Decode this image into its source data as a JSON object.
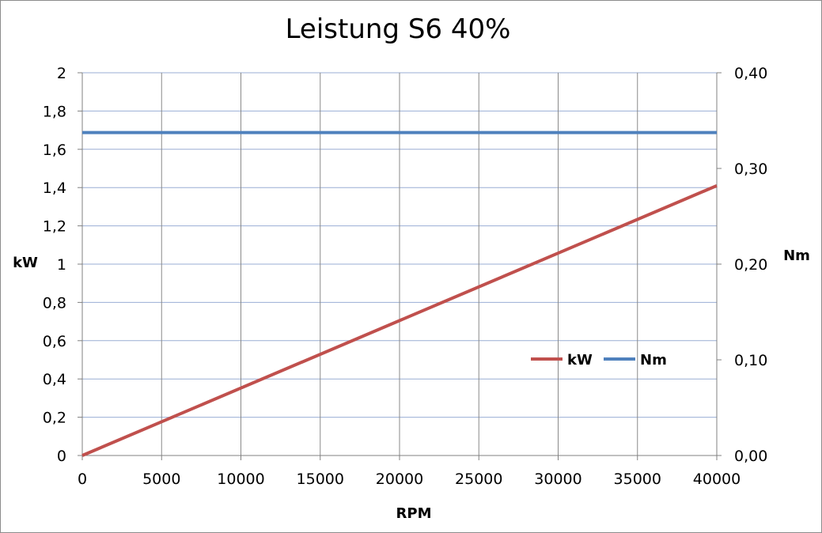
{
  "chart_data": {
    "type": "line",
    "title": "Leistung S6 40%",
    "xlabel": "RPM",
    "ylabel_left": "kW",
    "ylabel_right": "Nm",
    "xlim": [
      0,
      40000
    ],
    "ylim_left": [
      0,
      2
    ],
    "ylim_right": [
      0,
      0.4
    ],
    "x_ticks": [
      "0",
      "5000",
      "10000",
      "15000",
      "20000",
      "25000",
      "30000",
      "35000",
      "40000"
    ],
    "y_left_ticks": [
      "0",
      "0,2",
      "0,4",
      "0,6",
      "0,8",
      "1",
      "1,2",
      "1,4",
      "1,6",
      "1,8",
      "2"
    ],
    "y_right_ticks": [
      "0,00",
      "0,10",
      "0,20",
      "0,30",
      "0,40"
    ],
    "grid": true,
    "legend_position": "right-middle",
    "series": [
      {
        "name": "kW",
        "axis": "left",
        "color": "#c0504d",
        "x": [
          0,
          40000
        ],
        "values": [
          0,
          1.41
        ]
      },
      {
        "name": "Nm",
        "axis": "right",
        "color": "#4f81bd",
        "x": [
          0,
          40000
        ],
        "values": [
          0.3375,
          0.3375
        ]
      }
    ]
  }
}
